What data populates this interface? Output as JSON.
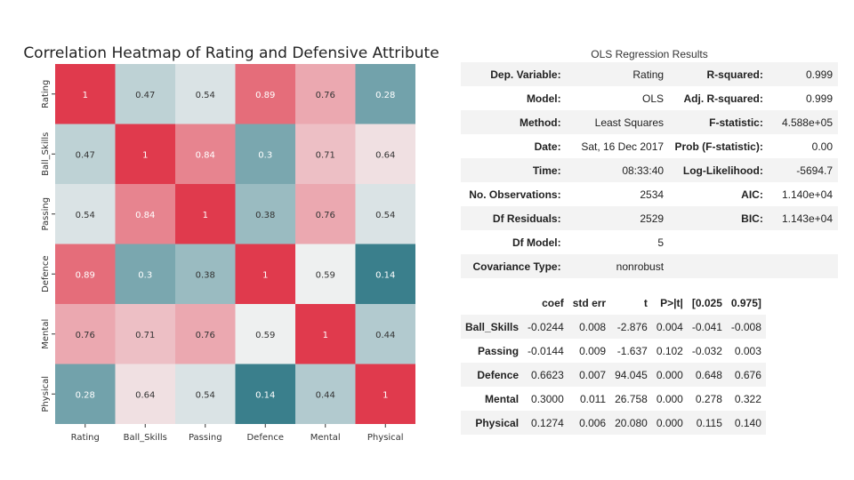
{
  "chart_data": {
    "type": "heatmap",
    "title": "Correlation Heatmap of Rating and Defensive Attribute",
    "labels": [
      "Rating",
      "Ball_Skills",
      "Passing",
      "Defence",
      "Mental",
      "Physical"
    ],
    "values": [
      [
        1,
        0.47,
        0.54,
        0.89,
        0.76,
        0.28
      ],
      [
        0.47,
        1,
        0.84,
        0.3,
        0.71,
        0.64
      ],
      [
        0.54,
        0.84,
        1,
        0.38,
        0.76,
        0.54
      ],
      [
        0.89,
        0.3,
        0.38,
        1,
        0.59,
        0.14
      ],
      [
        0.76,
        0.71,
        0.76,
        0.59,
        1,
        0.44
      ],
      [
        0.28,
        0.64,
        0.54,
        0.14,
        0.44,
        1
      ]
    ],
    "value_labels": [
      [
        "1",
        "0.47",
        "0.54",
        "0.89",
        "0.76",
        "0.28"
      ],
      [
        "0.47",
        "1",
        "0.84",
        "0.3",
        "0.71",
        "0.64"
      ],
      [
        "0.54",
        "0.84",
        "1",
        "0.38",
        "0.76",
        "0.54"
      ],
      [
        "0.89",
        "0.3",
        "0.38",
        "1",
        "0.59",
        "0.14"
      ],
      [
        "0.76",
        "0.71",
        "0.76",
        "0.59",
        "1",
        "0.44"
      ],
      [
        "0.28",
        "0.64",
        "0.54",
        "0.14",
        "0.44",
        "1"
      ]
    ],
    "colormap": {
      "low": "#3a7f8c",
      "mid": "#f2f2f2",
      "high": "#e03a4d",
      "center": 0.6
    }
  },
  "ols": {
    "title": "OLS Regression Results",
    "summary": [
      [
        "Dep. Variable:",
        "Rating",
        "R-squared:",
        "0.999"
      ],
      [
        "Model:",
        "OLS",
        "Adj. R-squared:",
        "0.999"
      ],
      [
        "Method:",
        "Least Squares",
        "F-statistic:",
        "4.588e+05"
      ],
      [
        "Date:",
        "Sat, 16 Dec 2017",
        "Prob (F-statistic):",
        "0.00"
      ],
      [
        "Time:",
        "08:33:40",
        "Log-Likelihood:",
        "-5694.7"
      ],
      [
        "No. Observations:",
        "2534",
        "AIC:",
        "1.140e+04"
      ],
      [
        "Df Residuals:",
        "2529",
        "BIC:",
        "1.143e+04"
      ],
      [
        "Df Model:",
        "5",
        "",
        ""
      ],
      [
        "Covariance Type:",
        "nonrobust",
        "",
        ""
      ]
    ],
    "coef_headers": [
      "",
      "coef",
      "std err",
      "t",
      "P>|t|",
      "[0.025",
      "0.975]"
    ],
    "coef_rows": [
      [
        "Ball_Skills",
        "-0.0244",
        "0.008",
        "-2.876",
        "0.004",
        "-0.041",
        "-0.008"
      ],
      [
        "Passing",
        "-0.0144",
        "0.009",
        "-1.637",
        "0.102",
        "-0.032",
        "0.003"
      ],
      [
        "Defence",
        "0.6623",
        "0.007",
        "94.045",
        "0.000",
        "0.648",
        "0.676"
      ],
      [
        "Mental",
        "0.3000",
        "0.011",
        "26.758",
        "0.000",
        "0.278",
        "0.322"
      ],
      [
        "Physical",
        "0.1274",
        "0.006",
        "20.080",
        "0.000",
        "0.115",
        "0.140"
      ]
    ]
  }
}
